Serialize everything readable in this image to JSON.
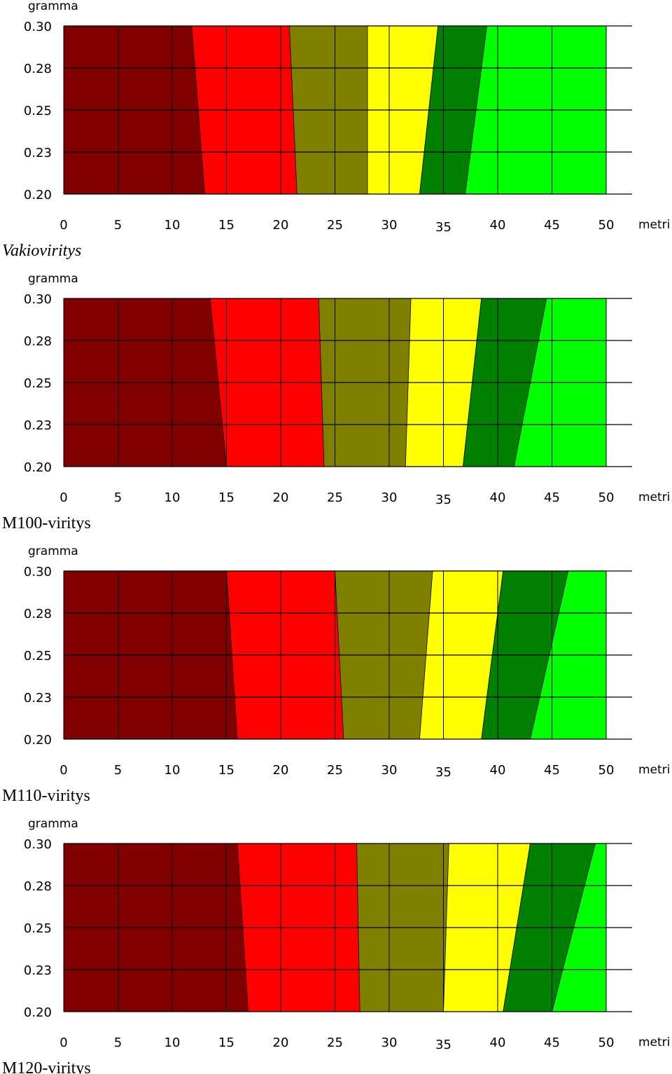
{
  "chart_data": [
    {
      "type": "area",
      "caption": "Vakioviritys",
      "caption_italic": true,
      "ylabel": "gramma",
      "xlabel": "metri",
      "xlim": [
        0,
        50
      ],
      "ylim": [
        0.2,
        0.3
      ],
      "x_ticks": [
        "0",
        "5",
        "10",
        "15",
        "20",
        "25",
        "30",
        "35",
        "40",
        "45",
        "50"
      ],
      "y_ticks": [
        "0.30",
        "0.28",
        "0.25",
        "0.23",
        "0.20"
      ],
      "grid": true,
      "zone_colors": [
        "#800000",
        "#ff0000",
        "#808000",
        "#ffff00",
        "#008000",
        "#00ff00"
      ],
      "boundaries": [
        {
          "top": 11.8,
          "bottom": 13.0
        },
        {
          "top": 20.8,
          "bottom": 21.5
        },
        {
          "top": 28.0,
          "bottom": 28.0
        },
        {
          "top": 34.5,
          "bottom": 32.8
        },
        {
          "top": 39.0,
          "bottom": 37.0
        }
      ]
    },
    {
      "type": "area",
      "caption": "M100-viritys",
      "caption_italic": false,
      "ylabel": "gramma",
      "xlabel": "metri",
      "xlim": [
        0,
        50
      ],
      "ylim": [
        0.2,
        0.3
      ],
      "x_ticks": [
        "0",
        "5",
        "10",
        "15",
        "20",
        "25",
        "30",
        "35",
        "40",
        "45",
        "50"
      ],
      "y_ticks": [
        "0.30",
        "0.28",
        "0.25",
        "0.23",
        "0.20"
      ],
      "grid": true,
      "zone_colors": [
        "#800000",
        "#ff0000",
        "#808000",
        "#ffff00",
        "#008000",
        "#00ff00"
      ],
      "boundaries": [
        {
          "top": 13.5,
          "bottom": 15.0
        },
        {
          "top": 23.5,
          "bottom": 24.0
        },
        {
          "top": 32.0,
          "bottom": 31.5
        },
        {
          "top": 38.5,
          "bottom": 36.8
        },
        {
          "top": 44.5,
          "bottom": 41.5
        }
      ]
    },
    {
      "type": "area",
      "caption": "M110-viritys",
      "caption_italic": false,
      "ylabel": "gramma",
      "xlabel": "metri",
      "xlim": [
        0,
        50
      ],
      "ylim": [
        0.2,
        0.3
      ],
      "x_ticks": [
        "0",
        "5",
        "10",
        "15",
        "20",
        "25",
        "30",
        "35",
        "40",
        "45",
        "50"
      ],
      "y_ticks": [
        "0.30",
        "0.28",
        "0.25",
        "0.23",
        "0.20"
      ],
      "grid": true,
      "zone_colors": [
        "#800000",
        "#ff0000",
        "#808000",
        "#ffff00",
        "#008000",
        "#00ff00"
      ],
      "boundaries": [
        {
          "top": 15.0,
          "bottom": 16.0
        },
        {
          "top": 25.0,
          "bottom": 25.8
        },
        {
          "top": 34.0,
          "bottom": 32.8
        },
        {
          "top": 40.5,
          "bottom": 38.5
        },
        {
          "top": 46.5,
          "bottom": 43.0
        }
      ]
    },
    {
      "type": "area",
      "caption": "M120-viritys",
      "caption_italic": false,
      "ylabel": "gramma",
      "xlabel": "metri",
      "xlim": [
        0,
        50
      ],
      "ylim": [
        0.2,
        0.3
      ],
      "x_ticks": [
        "0",
        "5",
        "10",
        "15",
        "20",
        "25",
        "30",
        "35",
        "40",
        "45",
        "50"
      ],
      "y_ticks": [
        "0.30",
        "0.28",
        "0.25",
        "0.23",
        "0.20"
      ],
      "grid": true,
      "zone_colors": [
        "#800000",
        "#ff0000",
        "#808000",
        "#ffff00",
        "#008000",
        "#00ff00"
      ],
      "boundaries": [
        {
          "top": 16.0,
          "bottom": 17.0
        },
        {
          "top": 27.0,
          "bottom": 27.3
        },
        {
          "top": 35.5,
          "bottom": 35.0
        },
        {
          "top": 43.0,
          "bottom": 40.5
        },
        {
          "top": 49.0,
          "bottom": 45.0
        }
      ]
    }
  ]
}
